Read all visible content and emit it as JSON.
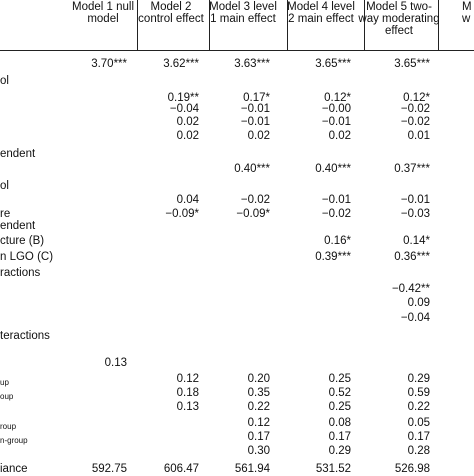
{
  "columns": [
    {
      "id": "m1",
      "label": "Model 1 null model"
    },
    {
      "id": "m2",
      "label": "Model 2 control effect"
    },
    {
      "id": "m3",
      "label": "Model 3 level 1 main effect"
    },
    {
      "id": "m4",
      "label": "Model 4 level 2 main effect"
    },
    {
      "id": "m5",
      "label": "Model 5 two-way moderating effect"
    },
    {
      "id": "m6",
      "label": "M w"
    }
  ],
  "rows": [
    {
      "label": "",
      "m1": "3.70***",
      "m2": "3.62***",
      "m3": "3.63***",
      "m4": "3.65***",
      "m5": "3.65***"
    },
    {
      "label": "ol"
    },
    {
      "label": "",
      "m2": "0.19**",
      "m3": "0.17*",
      "m4": "0.12*",
      "m5": "0.12*"
    },
    {
      "label": "",
      "m2": "−0.04",
      "m3": "−0.01",
      "m4": "−0.00",
      "m5": "−0.02"
    },
    {
      "label": "",
      "m2": "0.02",
      "m3": "−0.01",
      "m4": "−0.01",
      "m5": "−0.02"
    },
    {
      "label": "",
      "m2": "0.02",
      "m3": "0.02",
      "m4": "0.02",
      "m5": "0.01"
    },
    {
      "label": "endent"
    },
    {
      "label": "",
      "m3": "0.40***",
      "m4": "0.40***",
      "m5": "0.37***"
    },
    {
      "label": "ol"
    },
    {
      "label": "",
      "m2": "0.04",
      "m3": "−0.02",
      "m4": "−0.01",
      "m5": "−0.01"
    },
    {
      "label": "re",
      "m2": "−0.09*",
      "m3": "−0.09*",
      "m4": "−0.02",
      "m5": "−0.03"
    },
    {
      "label": "endent"
    },
    {
      "label": "cture (B)",
      "m4": "0.16*",
      "m5": "0.14*"
    },
    {
      "label": "n LGO (C)",
      "m4": "0.39***",
      "m5": "0.36***"
    },
    {
      "label": "ractions"
    },
    {
      "label": "",
      "m5": "−0.42**"
    },
    {
      "label": "",
      "m5": "0.09"
    },
    {
      "label": "",
      "m5": "−0.04"
    },
    {
      "label": "teractions"
    },
    {
      "label": ""
    },
    {
      "label": "",
      "m1": "0.13"
    },
    {
      "label": "up",
      "small": true,
      "m2": "0.12",
      "m3": "0.20",
      "m4": "0.25",
      "m5": "0.29"
    },
    {
      "label": "oup",
      "small": true,
      "m2": "0.18",
      "m3": "0.35",
      "m4": "0.52",
      "m5": "0.59"
    },
    {
      "label": "",
      "m2": "0.13",
      "m3": "0.22",
      "m4": "0.25",
      "m5": "0.22"
    },
    {
      "label": "roup",
      "small": true,
      "m3": "0.12",
      "m4": "0.08",
      "m5": "0.05"
    },
    {
      "label": "n-group",
      "small": true,
      "m3": "0.17",
      "m4": "0.17",
      "m5": "0.17"
    },
    {
      "label": "",
      "m3": "0.30",
      "m4": "0.29",
      "m5": "0.28"
    },
    {
      "label": "iance",
      "m1": "592.75",
      "m2": "606.47",
      "m3": "561.94",
      "m4": "531.52",
      "m5": "526.98"
    }
  ]
}
